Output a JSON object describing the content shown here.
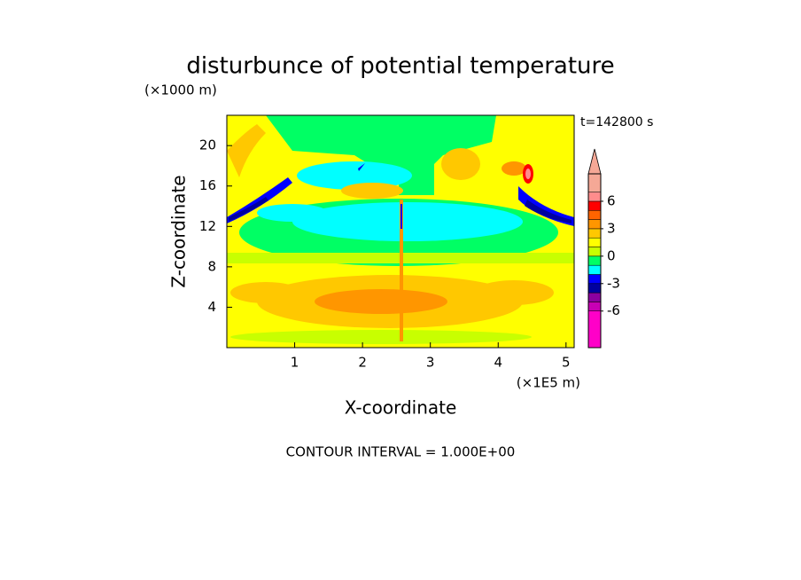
{
  "chart_data": {
    "type": "contour",
    "title": "disturbunce of potential temperature",
    "y_unit": "(×1000 m)",
    "x_unit": "(×1E5 m)",
    "x_label": "X-coordinate",
    "y_label": "Z-coordinate",
    "annotation": "t=142800 s",
    "footer": "CONTOUR INTERVAL = 1.000E+00",
    "xlim": [
      0,
      5.12
    ],
    "ylim": [
      0,
      23
    ],
    "xticks": [
      1,
      2,
      3,
      4,
      5
    ],
    "yticks": [
      4,
      8,
      12,
      16,
      20
    ],
    "colorbar": {
      "levels": [
        -10,
        -6,
        -5,
        -4,
        -3,
        -2,
        -1,
        0,
        1,
        2,
        3,
        4,
        5,
        6,
        7,
        9
      ],
      "colors": [
        "#ff00c8",
        "#c800b4",
        "#8c00a0",
        "#0000a0",
        "#0000ff",
        "#00ffff",
        "#00ff64",
        "#c8ff00",
        "#ffff00",
        "#ffc800",
        "#ff9600",
        "#ff6400",
        "#ff0000",
        "#ff8c8c",
        "#f5a896"
      ],
      "extend_color": "#f5a896",
      "ticks": [
        -6,
        -3,
        0,
        3,
        6
      ]
    }
  }
}
